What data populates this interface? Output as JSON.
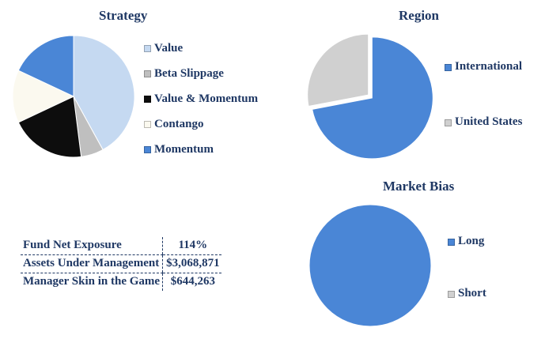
{
  "chart_data": [
    {
      "type": "pie",
      "title": "Strategy",
      "legend_position": "right",
      "slices": [
        {
          "label": "Value",
          "value": 42,
          "color": "#c5d9f1"
        },
        {
          "label": "Beta Slippage",
          "value": 6,
          "color": "#bfbfbf"
        },
        {
          "label": "Value & Momentum",
          "value": 20,
          "color": "#0d0d0d"
        },
        {
          "label": "Contango",
          "value": 14,
          "color": "#fbf9ef"
        },
        {
          "label": "Momentum",
          "value": 18,
          "color": "#4a86d6"
        }
      ]
    },
    {
      "type": "pie",
      "title": "Region",
      "legend_position": "right",
      "slices": [
        {
          "label": "International",
          "value": 72,
          "color": "#4a86d6"
        },
        {
          "label": "United States",
          "value": 28,
          "color": "#d0d0d0"
        }
      ]
    },
    {
      "type": "pie",
      "title": "Market Bias",
      "legend_position": "right",
      "slices": [
        {
          "label": "Long",
          "value": 100,
          "color": "#4a86d6"
        },
        {
          "label": "Short",
          "value": 0,
          "color": "#d0d0d0"
        }
      ]
    }
  ],
  "stats": {
    "rows": [
      {
        "label": "Fund Net Exposure",
        "value": "114%"
      },
      {
        "label": "Assets Under Management",
        "value": "$3,068,871"
      },
      {
        "label": "Manager Skin in the Game",
        "value": "$644,263"
      }
    ]
  }
}
